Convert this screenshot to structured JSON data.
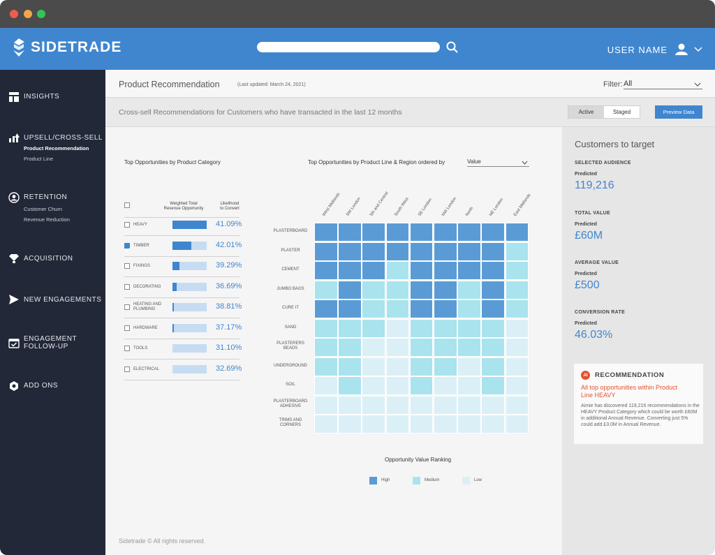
{
  "window": {
    "dot_colors": [
      "#ee5b51",
      "#f3a54a",
      "#32c55a"
    ]
  },
  "header": {
    "brand": "SIDETRADE",
    "search": {
      "placeholder": ""
    },
    "user_name": "USER NAME"
  },
  "sidebar": {
    "insights": "INSIGHTS",
    "upsell": "UPSELL/CROSS-SELL",
    "upsell_sub": [
      "Product Recommendation",
      "Product Line"
    ],
    "retention": "RETENTION",
    "retention_sub": [
      "Customer Churn",
      "Revenue Reduction"
    ],
    "acquisition": "ACQUISITION",
    "new_engagements": "NEW ENGAGEMENTS",
    "engagement_followup_l1": "ENGAGEMENT",
    "engagement_followup_l2": "FOLLOW-UP",
    "add_ons": "ADD ONS"
  },
  "page": {
    "title": "Product Recommendation",
    "last_updated": "(Last updated: March 24, 2021)",
    "filter_label": "Filter:",
    "filter_value": "All",
    "subtitle": "Cross-sell Recommendations for Customers who have transacted in the last 12 months",
    "toggle_active": "Active",
    "toggle_staged": "Staged",
    "preview_button": "Preview Data"
  },
  "categories_panel": {
    "title": "Top Opportunities by Product Category",
    "col_weighted_l1": "Weighted Total",
    "col_weighted_l2": "Revenue Opportunity",
    "col_likelihood_l1": "Likelihood",
    "col_likelihood_l2": "to Convert",
    "rows": [
      {
        "label": "HEAVY",
        "label2": "",
        "checked": false,
        "fill": 1.0,
        "pct": "41.09%"
      },
      {
        "label": "TIMBER",
        "label2": "",
        "checked": true,
        "fill": 0.55,
        "pct": "42.01%"
      },
      {
        "label": "FIXINGS",
        "label2": "",
        "checked": false,
        "fill": 0.2,
        "pct": "39.29%"
      },
      {
        "label": "DECORATING",
        "label2": "",
        "checked": false,
        "fill": 0.12,
        "pct": "36.69%"
      },
      {
        "label": "HEATING AND",
        "label2": "PLUMBING",
        "checked": false,
        "fill": 0.05,
        "pct": "38.81%"
      },
      {
        "label": "HARDWARE",
        "label2": "",
        "checked": false,
        "fill": 0.05,
        "pct": "37.17%"
      },
      {
        "label": "TOOLS",
        "label2": "",
        "checked": false,
        "fill": 0.0,
        "pct": "31.10%"
      },
      {
        "label": "ELECTRICAL",
        "label2": "",
        "checked": false,
        "fill": 0.0,
        "pct": "32.69%"
      }
    ]
  },
  "heatmap": {
    "title": "Top Opportunities by Product Line & Region ordered by",
    "order_by": "Value",
    "columns": [
      "West Midlands",
      "SW London",
      "5th and Central",
      "South West",
      "SE London",
      "NW London",
      "North",
      "NE London",
      "East Midlands"
    ],
    "rows": [
      {
        "l1": "PLASTERBOARD",
        "l2": ""
      },
      {
        "l1": "PLASTER",
        "l2": ""
      },
      {
        "l1": "CEMENT",
        "l2": ""
      },
      {
        "l1": "JUMBO BAGS",
        "l2": ""
      },
      {
        "l1": "CURE IT",
        "l2": ""
      },
      {
        "l1": "SAND",
        "l2": ""
      },
      {
        "l1": "PLASTERERS",
        "l2": "BEADS"
      },
      {
        "l1": "UNDERGROUND",
        "l2": ""
      },
      {
        "l1": "SOIL",
        "l2": ""
      },
      {
        "l1": "PLASTERBOARD",
        "l2": "ADHESIVE"
      },
      {
        "l1": "TRIMS AND",
        "l2": "CORNERS"
      }
    ],
    "values": [
      [
        "H",
        "H",
        "H",
        "H",
        "H",
        "H",
        "H",
        "H",
        "H"
      ],
      [
        "H",
        "H",
        "H",
        "H",
        "H",
        "H",
        "H",
        "H",
        "M"
      ],
      [
        "H",
        "H",
        "H",
        "M",
        "H",
        "H",
        "H",
        "H",
        "M"
      ],
      [
        "M",
        "H",
        "M",
        "M",
        "H",
        "H",
        "M",
        "H",
        "M"
      ],
      [
        "H",
        "H",
        "M",
        "M",
        "H",
        "H",
        "M",
        "H",
        "M"
      ],
      [
        "M",
        "M",
        "M",
        "L",
        "M",
        "M",
        "M",
        "M",
        "L"
      ],
      [
        "M",
        "M",
        "L",
        "L",
        "M",
        "M",
        "M",
        "M",
        "L"
      ],
      [
        "M",
        "M",
        "L",
        "L",
        "M",
        "M",
        "L",
        "M",
        "L"
      ],
      [
        "L",
        "M",
        "L",
        "L",
        "M",
        "L",
        "L",
        "M",
        "L"
      ],
      [
        "L",
        "L",
        "L",
        "L",
        "L",
        "L",
        "L",
        "L",
        "L"
      ],
      [
        "L",
        "L",
        "L",
        "L",
        "L",
        "L",
        "L",
        "L",
        "L"
      ]
    ],
    "colors": {
      "H": "#5b9bd5",
      "M": "#a9e3ee",
      "L": "#dbeff7"
    },
    "legend_title": "Opportunity Value Ranking",
    "legend": [
      {
        "key": "H",
        "label": "High"
      },
      {
        "key": "M",
        "label": "Medium"
      },
      {
        "key": "L",
        "label": "Low"
      }
    ]
  },
  "customers": {
    "title": "Customers to target",
    "metrics": [
      {
        "label": "SELECTED AUDIENCE",
        "sub": "Predicted",
        "value": "119,216"
      },
      {
        "label": "TOTAL VALUE",
        "sub": "Predicted",
        "value": "£60M"
      },
      {
        "label": "AVERAGE VALUE",
        "sub": "Predicted",
        "value": "£500"
      },
      {
        "label": "CONVERSION RATE",
        "sub": "Predicted",
        "value": "46.03%"
      }
    ],
    "recommendation": {
      "badge": "AI",
      "title": "RECOMMENDATION",
      "headline": "All top opportunities within Product Line HEAVY",
      "body": "Aimie has discovered 119,216 recommendations in the HEAVY Product Category which could be worth £60M in additional Annual Revenue. Converting just 5% could add £3.0M in Annual Revenue."
    }
  },
  "footer": {
    "text": "Sidetrade © All rights reserved."
  }
}
